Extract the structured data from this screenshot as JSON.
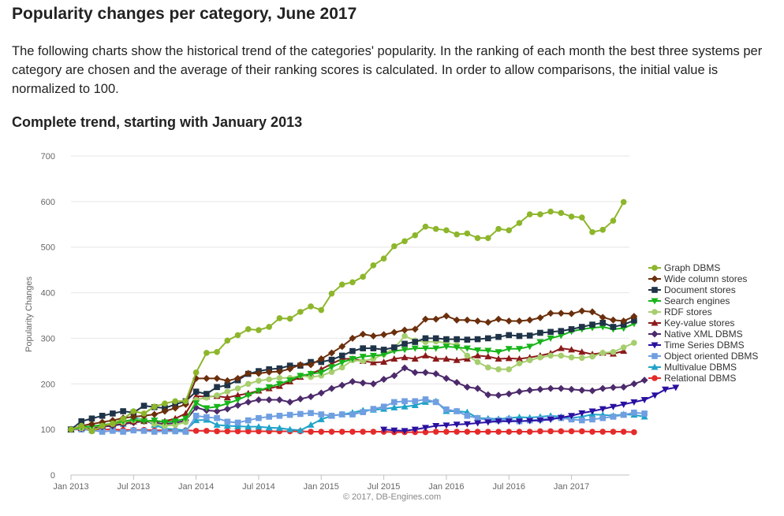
{
  "page": {
    "title": "Popularity changes per category, June 2017",
    "intro": "The following charts show the historical trend of the categories' popularity. In the ranking of each month the best three systems per category are chosen and the average of their ranking scores is calculated. In order to allow comparisons, the initial value is normalized to 100.",
    "subtitle": "Complete trend, starting with January 2013"
  },
  "chart_data": {
    "type": "line",
    "ylabel": "Popularity Changes",
    "xlabel": "",
    "credit": "© 2017, DB-Engines.com",
    "ylim": [
      0,
      700
    ],
    "yticks": [
      0,
      100,
      200,
      300,
      400,
      500,
      600,
      700
    ],
    "xticks": [
      {
        "label": "Jan 2013",
        "index": 0
      },
      {
        "label": "Jul 2013",
        "index": 6
      },
      {
        "label": "Jan 2014",
        "index": 12
      },
      {
        "label": "Jul 2014",
        "index": 18
      },
      {
        "label": "Jan 2015",
        "index": 24
      },
      {
        "label": "Jul 2015",
        "index": 30
      },
      {
        "label": "Jan 2016",
        "index": 36
      },
      {
        "label": "Jul 2016",
        "index": 42
      },
      {
        "label": "Jan 2017",
        "index": 48
      }
    ],
    "x_start": "Jan 2013",
    "x_end": "Jun 2017",
    "grid": "horizontal",
    "legend": "right",
    "series": [
      {
        "name": "Graph DBMS",
        "color": "#8db62b",
        "marker": "circle",
        "values": [
          100,
          108,
          96,
          108,
          113,
          123,
          140,
          135,
          150,
          157,
          162,
          162,
          225,
          268,
          270,
          295,
          307,
          320,
          318,
          325,
          344,
          343,
          358,
          370,
          362,
          398,
          418,
          423,
          435,
          460,
          475,
          502,
          513,
          526,
          545,
          540,
          537,
          528,
          530,
          520,
          520,
          540,
          537,
          553,
          572,
          572,
          578,
          575,
          567,
          565,
          533,
          538,
          558,
          599
        ]
      },
      {
        "name": "Wide column stores",
        "color": "#6b2f0c",
        "marker": "diamond",
        "values": [
          100,
          108,
          112,
          116,
          120,
          125,
          128,
          130,
          133,
          140,
          147,
          155,
          212,
          212,
          212,
          207,
          212,
          223,
          223,
          226,
          227,
          233,
          242,
          242,
          255,
          268,
          282,
          300,
          309,
          305,
          308,
          313,
          318,
          320,
          342,
          342,
          349,
          340,
          340,
          338,
          335,
          342,
          338,
          338,
          340,
          345,
          355,
          355,
          354,
          360,
          358,
          346,
          340,
          338,
          348
        ]
      },
      {
        "name": "Document stores",
        "color": "#1e3348",
        "marker": "square",
        "values": [
          100,
          118,
          124,
          130,
          135,
          140,
          137,
          152,
          149,
          147,
          155,
          162,
          183,
          178,
          193,
          197,
          208,
          222,
          228,
          232,
          234,
          240,
          240,
          248,
          248,
          253,
          262,
          272,
          278,
          278,
          275,
          280,
          288,
          292,
          300,
          300,
          298,
          298,
          297,
          298,
          300,
          303,
          307,
          305,
          306,
          312,
          314,
          316,
          320,
          325,
          330,
          334,
          325,
          330,
          339
        ]
      },
      {
        "name": "Search engines",
        "color": "#16b419",
        "marker": "triangle-down",
        "values": [
          100,
          105,
          107,
          110,
          113,
          118,
          121,
          118,
          120,
          116,
          118,
          124,
          158,
          147,
          150,
          157,
          165,
          175,
          185,
          193,
          200,
          208,
          218,
          222,
          225,
          237,
          247,
          255,
          260,
          262,
          264,
          272,
          275,
          278,
          278,
          278,
          282,
          280,
          278,
          274,
          273,
          270,
          277,
          277,
          282,
          292,
          300,
          306,
          315,
          320,
          323,
          325,
          320,
          322,
          332
        ]
      },
      {
        "name": "RDF stores",
        "color": "#a6ce6e",
        "marker": "circle",
        "values": [
          100,
          103,
          106,
          109,
          112,
          116,
          120,
          124,
          112,
          108,
          110,
          116,
          165,
          170,
          175,
          183,
          190,
          200,
          207,
          210,
          213,
          213,
          218,
          215,
          218,
          226,
          236,
          252,
          250,
          255,
          265,
          278,
          305,
          295,
          292,
          293,
          290,
          285,
          262,
          248,
          236,
          232,
          232,
          245,
          252,
          258,
          262,
          262,
          258,
          257,
          260,
          268,
          270,
          280,
          290
        ]
      },
      {
        "name": "Key-value stores",
        "color": "#8b1a1a",
        "marker": "triangle-up",
        "values": [
          100,
          103,
          105,
          108,
          111,
          115,
          117,
          118,
          117,
          118,
          124,
          135,
          173,
          172,
          173,
          170,
          175,
          179,
          185,
          190,
          195,
          205,
          215,
          222,
          232,
          244,
          255,
          255,
          250,
          247,
          248,
          255,
          258,
          255,
          262,
          255,
          255,
          252,
          255,
          262,
          260,
          255,
          256,
          255,
          258,
          262,
          267,
          278,
          275,
          270,
          265,
          268,
          266,
          272
        ]
      },
      {
        "name": "Native XML DBMS",
        "color": "#4c2a6b",
        "marker": "diamond",
        "values": [
          100,
          102,
          104,
          106,
          108,
          112,
          115,
          118,
          115,
          112,
          114,
          120,
          148,
          142,
          140,
          145,
          153,
          160,
          165,
          165,
          165,
          160,
          167,
          172,
          180,
          190,
          197,
          205,
          202,
          200,
          210,
          218,
          235,
          225,
          225,
          222,
          212,
          203,
          193,
          190,
          176,
          175,
          178,
          183,
          186,
          188,
          190,
          190,
          188,
          186,
          185,
          190,
          192,
          193,
          200,
          208
        ]
      },
      {
        "name": "Time Series DBMS",
        "color": "#2a10a0",
        "marker": "triangle-down",
        "start": 30,
        "values": [
          100,
          98,
          97,
          100,
          104,
          108,
          109,
          111,
          112,
          114,
          116,
          118,
          118,
          118,
          119,
          120,
          122,
          126,
          130,
          136,
          140,
          145,
          150,
          155,
          160,
          165,
          175,
          188,
          192
        ]
      },
      {
        "name": "Object oriented DBMS",
        "color": "#6f9fe0",
        "marker": "square",
        "values": [
          100,
          100,
          98,
          95,
          97,
          95,
          98,
          97,
          95,
          96,
          96,
          95,
          130,
          127,
          125,
          117,
          115,
          120,
          125,
          128,
          130,
          132,
          134,
          136,
          133,
          130,
          133,
          133,
          138,
          145,
          150,
          160,
          162,
          162,
          166,
          160,
          144,
          140,
          130,
          125,
          120,
          120,
          122,
          118,
          120,
          122,
          125,
          125,
          122,
          120,
          122,
          125,
          128,
          132,
          137,
          135
        ]
      },
      {
        "name": "Multivalue DBMS",
        "color": "#1fa3c9",
        "marker": "triangle-up",
        "values": [
          100,
          102,
          104,
          106,
          108,
          112,
          125,
          122,
          110,
          102,
          100,
          98,
          120,
          121,
          110,
          108,
          107,
          106,
          106,
          104,
          103,
          100,
          98,
          110,
          122,
          130,
          133,
          137,
          142,
          143,
          145,
          148,
          150,
          153,
          160,
          162,
          140,
          140,
          138,
          125,
          124,
          123,
          125,
          127,
          126,
          128,
          130,
          128,
          125,
          128,
          133,
          132,
          130,
          133,
          132,
          128
        ]
      },
      {
        "name": "Relational DBMS",
        "color": "#e52a2a",
        "marker": "circle",
        "values": [
          100,
          100,
          100,
          100,
          100,
          99,
          99,
          99,
          98,
          98,
          98,
          98,
          97,
          97,
          96,
          96,
          96,
          96,
          96,
          96,
          96,
          96,
          96,
          95,
          95,
          95,
          95,
          95,
          95,
          95,
          95,
          94,
          94,
          94,
          94,
          95,
          95,
          95,
          95,
          95,
          95,
          95,
          95,
          95,
          95,
          96,
          96,
          96,
          96,
          96,
          95,
          95,
          95,
          95,
          94
        ]
      }
    ]
  }
}
